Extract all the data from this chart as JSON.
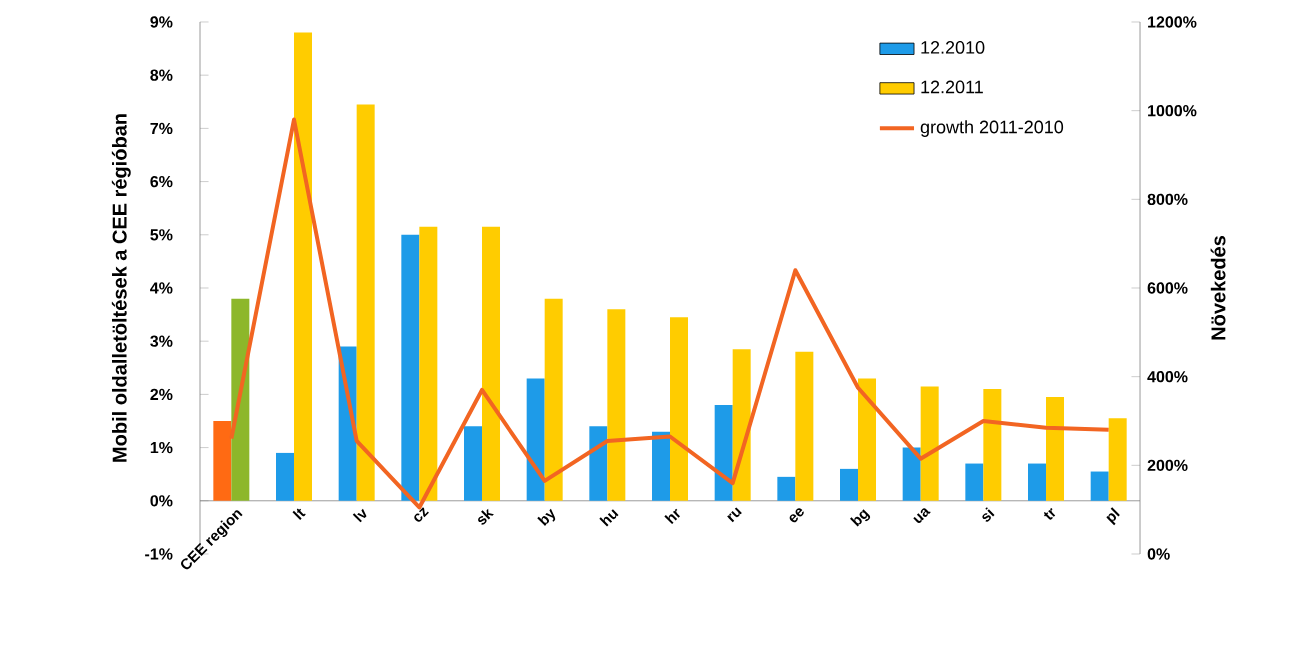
{
  "chart_data": {
    "type": "bar",
    "ylabel": "Mobil oldalletöltések a CEE régióban",
    "y2label": "Növekedés",
    "categories": [
      "CEE region",
      "lt",
      "lv",
      "cz",
      "sk",
      "by",
      "hu",
      "hr",
      "ru",
      "ee",
      "bg",
      "ua",
      "si",
      "tr",
      "pl"
    ],
    "series": [
      {
        "name": "12.2010",
        "color": "#1e9be8",
        "colors": [
          "#ff6a13",
          "#1e9be8",
          "#1e9be8",
          "#1e9be8",
          "#1e9be8",
          "#1e9be8",
          "#1e9be8",
          "#1e9be8",
          "#1e9be8",
          "#1e9be8",
          "#1e9be8",
          "#1e9be8",
          "#1e9be8",
          "#1e9be8",
          "#1e9be8"
        ],
        "values": [
          1.5,
          0.9,
          2.9,
          5.0,
          1.4,
          2.3,
          1.4,
          1.3,
          1.8,
          0.45,
          0.6,
          1.0,
          0.7,
          0.7,
          0.55
        ]
      },
      {
        "name": "12.2011",
        "color": "#ffcc00",
        "colors": [
          "#8db72a",
          "#ffcc00",
          "#ffcc00",
          "#ffcc00",
          "#ffcc00",
          "#ffcc00",
          "#ffcc00",
          "#ffcc00",
          "#ffcc00",
          "#ffcc00",
          "#ffcc00",
          "#ffcc00",
          "#ffcc00",
          "#ffcc00",
          "#ffcc00"
        ],
        "values": [
          3.8,
          8.8,
          7.45,
          5.15,
          5.15,
          3.8,
          3.6,
          3.45,
          2.85,
          2.8,
          2.3,
          2.15,
          2.1,
          1.95,
          1.55
        ]
      },
      {
        "name": "growth 2011-2010",
        "type": "line",
        "axis": "y2",
        "color": "#f26522",
        "values": [
          260,
          980,
          255,
          105,
          370,
          165,
          255,
          265,
          160,
          640,
          375,
          215,
          300,
          285,
          280
        ]
      }
    ],
    "ylim": [
      -1,
      9
    ],
    "yticks": [
      {
        "value": -1,
        "label": "-1%"
      },
      {
        "value": 0,
        "label": "0%"
      },
      {
        "value": 1,
        "label": "1%"
      },
      {
        "value": 2,
        "label": "2%"
      },
      {
        "value": 3,
        "label": "3%"
      },
      {
        "value": 4,
        "label": "4%"
      },
      {
        "value": 5,
        "label": "5%"
      },
      {
        "value": 6,
        "label": "6%"
      },
      {
        "value": 7,
        "label": "7%"
      },
      {
        "value": 8,
        "label": "8%"
      },
      {
        "value": 9,
        "label": "9%"
      }
    ],
    "y2lim": [
      0,
      1200
    ],
    "y2ticks": [
      {
        "value": 0,
        "label": "0%"
      },
      {
        "value": 200,
        "label": "200%"
      },
      {
        "value": 400,
        "label": "400%"
      },
      {
        "value": 600,
        "label": "600%"
      },
      {
        "value": 800,
        "label": "800%"
      },
      {
        "value": 1000,
        "label": "1000%"
      },
      {
        "value": 1200,
        "label": "1200%"
      }
    ],
    "legend": "top right",
    "marker": "none",
    "line_style": "solid"
  }
}
